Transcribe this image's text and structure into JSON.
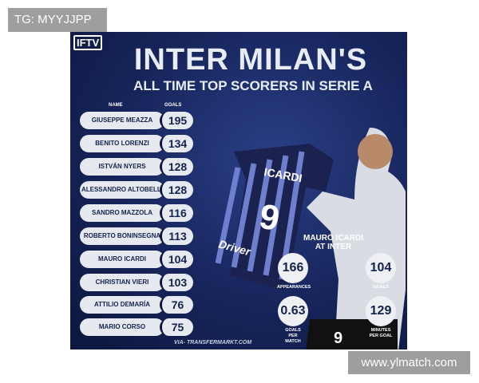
{
  "watermark_top": "TG: MYYJJPP",
  "watermark_bottom": "www.ylmatch.com",
  "poster": {
    "logo": "IFTV",
    "title": "INTER MILAN'S",
    "subtitle": "ALL TIME TOP SCORERS IN SERIE A",
    "col_name": "NAME",
    "col_goals": "GOALS",
    "scorers": [
      {
        "name": "GIUSEPPE MEAZZA",
        "goals": "195"
      },
      {
        "name": "BENITO LORENZI",
        "goals": "134"
      },
      {
        "name": "ISTVÁN NYERS",
        "goals": "128"
      },
      {
        "name": "ALESSANDRO ALTOBELLI",
        "goals": "128"
      },
      {
        "name": "SANDRO MAZZOLA",
        "goals": "116"
      },
      {
        "name": "ROBERTO BONINSEGNA",
        "goals": "113"
      },
      {
        "name": "MAURO ICARDI",
        "goals": "104"
      },
      {
        "name": "CHRISTIAN VIERI",
        "goals": "103"
      },
      {
        "name": "ATTILIO DEMARÍA",
        "goals": "76"
      },
      {
        "name": "MARIO CORSO",
        "goals": "75"
      }
    ],
    "source": "VIA- TRANSFERMARKT.COM",
    "jersey": {
      "name": "ICARDI",
      "number": "9",
      "sponsor": "Driver"
    },
    "shorts_number": "9",
    "icardi": {
      "heading_1": "MAURO ICARDI",
      "heading_2": "AT INTER",
      "stats": [
        {
          "value": "166",
          "label": "APPEARANCES"
        },
        {
          "value": "104",
          "label": "GOALS"
        },
        {
          "value": "0.63",
          "label": "GOALS PER MATCH"
        },
        {
          "value": "129",
          "label": "MINUTES PER GOAL"
        }
      ]
    }
  }
}
